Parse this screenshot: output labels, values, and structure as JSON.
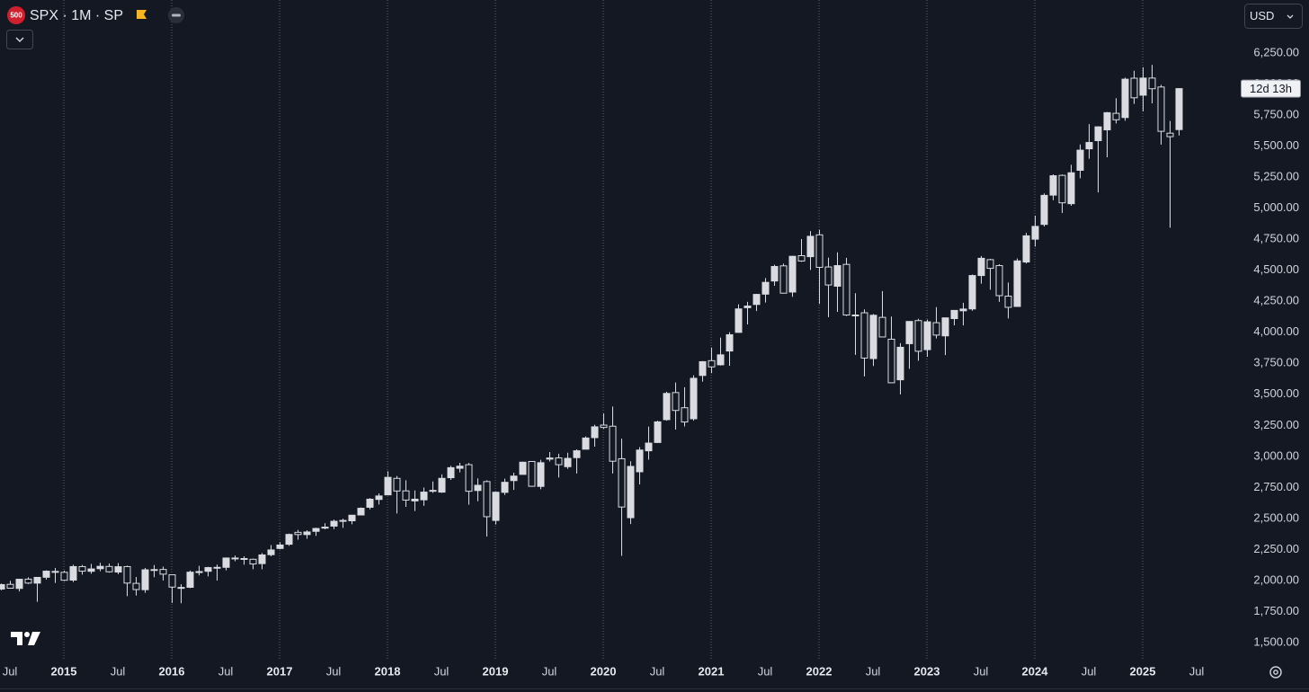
{
  "chart_data": {
    "type": "candlestick",
    "title": "SPX · 1M · SP",
    "badge": "500",
    "currency": "USD",
    "countdown": "12d 13h",
    "up_color": "#d9dbe1",
    "down_color": "#141823",
    "xlim": [
      "2014-06",
      "2025-12"
    ],
    "ylim": [
      1348,
      6670
    ],
    "x": [
      "2014-06",
      "2014-07",
      "2014-08",
      "2014-09",
      "2014-10",
      "2014-11",
      "2014-12",
      "2015-01",
      "2015-02",
      "2015-03",
      "2015-04",
      "2015-05",
      "2015-06",
      "2015-07",
      "2015-08",
      "2015-09",
      "2015-10",
      "2015-11",
      "2015-12",
      "2016-01",
      "2016-02",
      "2016-03",
      "2016-04",
      "2016-05",
      "2016-06",
      "2016-07",
      "2016-08",
      "2016-09",
      "2016-10",
      "2016-11",
      "2016-12",
      "2017-01",
      "2017-02",
      "2017-03",
      "2017-04",
      "2017-05",
      "2017-06",
      "2017-07",
      "2017-08",
      "2017-09",
      "2017-10",
      "2017-11",
      "2017-12",
      "2018-01",
      "2018-02",
      "2018-03",
      "2018-04",
      "2018-05",
      "2018-06",
      "2018-07",
      "2018-08",
      "2018-09",
      "2018-10",
      "2018-11",
      "2018-12",
      "2019-01",
      "2019-02",
      "2019-03",
      "2019-04",
      "2019-05",
      "2019-06",
      "2019-07",
      "2019-08",
      "2019-09",
      "2019-10",
      "2019-11",
      "2019-12",
      "2020-01",
      "2020-02",
      "2020-03",
      "2020-04",
      "2020-05",
      "2020-06",
      "2020-07",
      "2020-08",
      "2020-09",
      "2020-10",
      "2020-11",
      "2020-12",
      "2021-01",
      "2021-02",
      "2021-03",
      "2021-04",
      "2021-05",
      "2021-06",
      "2021-07",
      "2021-08",
      "2021-09",
      "2021-10",
      "2021-11",
      "2021-12",
      "2022-01",
      "2022-02",
      "2022-03",
      "2022-04",
      "2022-05",
      "2022-06",
      "2022-07",
      "2022-08",
      "2022-09",
      "2022-10",
      "2022-11",
      "2022-12",
      "2023-01",
      "2023-02",
      "2023-03",
      "2023-04",
      "2023-05",
      "2023-06",
      "2023-07",
      "2023-08",
      "2023-09",
      "2023-10",
      "2023-11",
      "2023-12",
      "2024-01",
      "2024-02",
      "2024-03",
      "2024-04",
      "2024-05",
      "2024-06",
      "2024-07",
      "2024-08",
      "2024-09",
      "2024-10",
      "2024-11",
      "2024-12",
      "2025-01",
      "2025-02",
      "2025-03",
      "2025-04",
      "2025-05"
    ],
    "open": [
      1924,
      1962,
      1929,
      2004,
      1972,
      2019,
      2066,
      2059,
      1996,
      2105,
      2067,
      2088,
      2106,
      2061,
      2105,
      1970,
      1919,
      2081,
      2082,
      2039,
      1937,
      1938,
      2057,
      2067,
      2094,
      2099,
      2174,
      2170,
      2164,
      2129,
      2201,
      2251,
      2285,
      2381,
      2363,
      2389,
      2415,
      2431,
      2477,
      2474,
      2521,
      2583,
      2646,
      2683,
      2816,
      2715,
      2634,
      2643,
      2719,
      2705,
      2821,
      2897,
      2926,
      2718,
      2790,
      2477,
      2703,
      2798,
      2848,
      2952,
      2751,
      2971,
      2981,
      2910,
      2983,
      3051,
      3144,
      3245,
      3236,
      2974,
      2499,
      2869,
      3038,
      3105,
      3289,
      3507,
      3385,
      3296,
      3645,
      3764,
      3731,
      3842,
      3992,
      4191,
      4217,
      4300,
      4406,
      4528,
      4317,
      4610,
      4602,
      4778,
      4519,
      4364,
      4540,
      4131,
      4150,
      3781,
      4113,
      3937,
      3610,
      3901,
      4087,
      3853,
      4070,
      3964,
      4103,
      4166,
      4181,
      4450,
      4578,
      4530,
      4284,
      4201,
      4559,
      4743,
      4862,
      5098,
      5257,
      5029,
      5298,
      5471,
      5537,
      5624,
      5757,
      5723,
      6040,
      5903,
      6041,
      5969,
      5597,
      5626
    ],
    "high": [
      1968,
      1991,
      2005,
      2019,
      2018,
      2075,
      2094,
      2072,
      2120,
      2118,
      2126,
      2135,
      2130,
      2133,
      2113,
      2021,
      2094,
      2117,
      2105,
      2039,
      1963,
      2073,
      2111,
      2103,
      2121,
      2178,
      2194,
      2188,
      2169,
      2214,
      2278,
      2301,
      2371,
      2401,
      2398,
      2418,
      2454,
      2484,
      2491,
      2520,
      2582,
      2657,
      2695,
      2873,
      2835,
      2801,
      2718,
      2742,
      2791,
      2848,
      2917,
      2941,
      2940,
      2816,
      2800,
      2708,
      2813,
      2861,
      2950,
      2955,
      2965,
      3028,
      3014,
      3022,
      3050,
      3154,
      3248,
      3338,
      3394,
      3136,
      2954,
      3068,
      3233,
      3280,
      3514,
      3588,
      3550,
      3646,
      3760,
      3870,
      3950,
      3994,
      4218,
      4238,
      4302,
      4430,
      4537,
      4546,
      4608,
      4744,
      4808,
      4818,
      4595,
      4637,
      4593,
      4308,
      4177,
      4140,
      4325,
      4119,
      3905,
      4080,
      4101,
      4095,
      4195,
      4110,
      4170,
      4231,
      4458,
      4607,
      4585,
      4541,
      4394,
      4587,
      4794,
      4932,
      5111,
      5265,
      5264,
      5342,
      5506,
      5670,
      5652,
      5768,
      5879,
      6045,
      6100,
      6128,
      6147,
      5987,
      5695,
      5960
    ],
    "low": [
      1915,
      1931,
      1905,
      1964,
      1821,
      2001,
      1973,
      1988,
      1981,
      2040,
      2048,
      2068,
      2057,
      2044,
      1867,
      1872,
      1894,
      2020,
      1993,
      1812,
      1810,
      1932,
      2034,
      2026,
      1992,
      2075,
      2148,
      2120,
      2084,
      2084,
      2188,
      2245,
      2272,
      2322,
      2329,
      2353,
      2405,
      2407,
      2417,
      2446,
      2520,
      2566,
      2605,
      2682,
      2533,
      2586,
      2553,
      2594,
      2698,
      2699,
      2803,
      2864,
      2604,
      2631,
      2347,
      2444,
      2682,
      2723,
      2848,
      2751,
      2728,
      2952,
      2822,
      2892,
      2855,
      3051,
      3071,
      3214,
      2855,
      2192,
      2448,
      2767,
      2966,
      3101,
      3280,
      3209,
      3234,
      3280,
      3595,
      3663,
      3725,
      3723,
      3992,
      4056,
      4164,
      4233,
      4367,
      4305,
      4279,
      4560,
      4495,
      4222,
      4115,
      4157,
      4124,
      3811,
      3637,
      3721,
      3955,
      3584,
      3492,
      3699,
      3764,
      3795,
      3943,
      3809,
      4049,
      4048,
      4166,
      4385,
      4336,
      4238,
      4104,
      4197,
      4547,
      4683,
      4845,
      5057,
      4954,
      5012,
      5234,
      5391,
      5120,
      5403,
      5675,
      5697,
      5833,
      5773,
      5837,
      5505,
      4835,
      5578
    ],
    "close": [
      1960,
      1931,
      2003,
      1972,
      2018,
      2068,
      2059,
      1995,
      2105,
      2068,
      2086,
      2107,
      2063,
      2104,
      1972,
      1920,
      2079,
      2080,
      2044,
      1940,
      1932,
      2060,
      2065,
      2097,
      2099,
      2174,
      2171,
      2168,
      2126,
      2199,
      2239,
      2279,
      2364,
      2363,
      2384,
      2412,
      2423,
      2470,
      2472,
      2519,
      2575,
      2648,
      2674,
      2824,
      2714,
      2641,
      2648,
      2705,
      2718,
      2816,
      2902,
      2914,
      2712,
      2760,
      2507,
      2704,
      2784,
      2834,
      2946,
      2752,
      2942,
      2980,
      2926,
      2977,
      3038,
      3141,
      3231,
      3226,
      2954,
      2585,
      2912,
      3044,
      3100,
      3271,
      3500,
      3363,
      3270,
      3622,
      3756,
      3714,
      3811,
      3973,
      4181,
      4204,
      4298,
      4395,
      4523,
      4308,
      4605,
      4567,
      4766,
      4516,
      4374,
      4530,
      4132,
      4132,
      3785,
      4130,
      3955,
      3586,
      3872,
      4080,
      3840,
      4077,
      3970,
      4109,
      4169,
      4180,
      4450,
      4589,
      4508,
      4288,
      4194,
      4568,
      4770,
      4846,
      5096,
      5254,
      5036,
      5278,
      5460,
      5522,
      5648,
      5762,
      5705,
      6032,
      5882,
      6041,
      5955,
      5612,
      5569,
      5956
    ],
    "yticks": [
      {
        "value": 1500,
        "label": "1,500.00"
      },
      {
        "value": 1750,
        "label": "1,750.00"
      },
      {
        "value": 2000,
        "label": "2,000.00"
      },
      {
        "value": 2250,
        "label": "2,250.00"
      },
      {
        "value": 2500,
        "label": "2,500.00"
      },
      {
        "value": 2750,
        "label": "2,750.00"
      },
      {
        "value": 3000,
        "label": "3,000.00"
      },
      {
        "value": 3250,
        "label": "3,250.00"
      },
      {
        "value": 3500,
        "label": "3,500.00"
      },
      {
        "value": 3750,
        "label": "3,750.00"
      },
      {
        "value": 4000,
        "label": "4,000.00"
      },
      {
        "value": 4250,
        "label": "4,250.00"
      },
      {
        "value": 4500,
        "label": "4,500.00"
      },
      {
        "value": 4750,
        "label": "4,750.00"
      },
      {
        "value": 5000,
        "label": "5,000.00"
      },
      {
        "value": 5250,
        "label": "5,250.00"
      },
      {
        "value": 5500,
        "label": "5,500.00"
      },
      {
        "value": 5750,
        "label": "5,750.00"
      },
      {
        "value": 6000,
        "label": "6,000.00"
      },
      {
        "value": 6250,
        "label": "6,250.00"
      }
    ],
    "xticks": [
      {
        "value": "2014-07",
        "label": "Jul"
      },
      {
        "value": "2015-01",
        "label": "2015"
      },
      {
        "value": "2015-07",
        "label": "Jul"
      },
      {
        "value": "2016-01",
        "label": "2016"
      },
      {
        "value": "2016-07",
        "label": "Jul"
      },
      {
        "value": "2017-01",
        "label": "2017"
      },
      {
        "value": "2017-07",
        "label": "Jul"
      },
      {
        "value": "2018-01",
        "label": "2018"
      },
      {
        "value": "2018-07",
        "label": "Jul"
      },
      {
        "value": "2019-01",
        "label": "2019"
      },
      {
        "value": "2019-07",
        "label": "Jul"
      },
      {
        "value": "2020-01",
        "label": "2020"
      },
      {
        "value": "2020-07",
        "label": "Jul"
      },
      {
        "value": "2021-01",
        "label": "2021"
      },
      {
        "value": "2021-07",
        "label": "Jul"
      },
      {
        "value": "2022-01",
        "label": "2022"
      },
      {
        "value": "2022-07",
        "label": "Jul"
      },
      {
        "value": "2023-01",
        "label": "2023"
      },
      {
        "value": "2023-07",
        "label": "Jul"
      },
      {
        "value": "2024-01",
        "label": "2024"
      },
      {
        "value": "2024-07",
        "label": "Jul"
      },
      {
        "value": "2025-01",
        "label": "2025"
      },
      {
        "value": "2025-07",
        "label": "Jul"
      }
    ],
    "grid": true
  }
}
